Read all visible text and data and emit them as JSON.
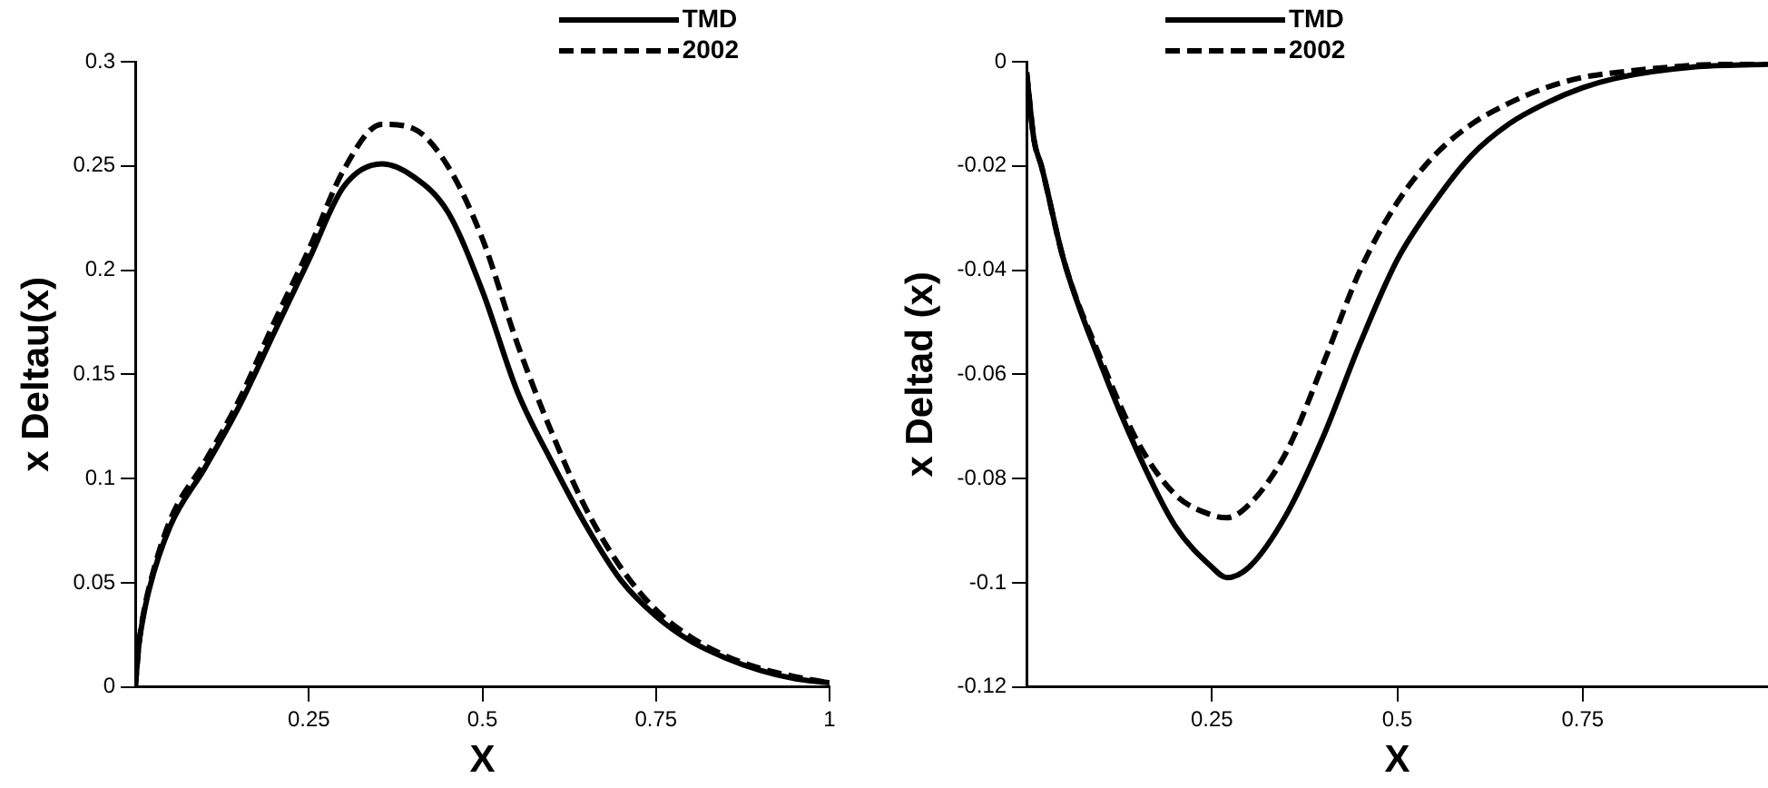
{
  "chart_data": [
    {
      "type": "line",
      "xlabel": "X",
      "ylabel": "x Deltau(x)",
      "xlim": [
        0,
        1
      ],
      "xticks": [
        0.25,
        0.5,
        0.75,
        1
      ],
      "ylim": [
        0,
        0.3
      ],
      "yticks": [
        0,
        0.05,
        0.1,
        0.15,
        0.2,
        0.25,
        0.3
      ],
      "grid": false,
      "legend": "top right",
      "marker": "none",
      "x": [
        0,
        0.005,
        0.01,
        0.02,
        0.05,
        0.1,
        0.15,
        0.2,
        0.25,
        0.3,
        0.355,
        0.4,
        0.45,
        0.5,
        0.55,
        0.6,
        0.65,
        0.7,
        0.75,
        0.8,
        0.85,
        0.9,
        0.95,
        1
      ],
      "series": [
        {
          "name": "TMD",
          "color": "#000000",
          "line_style": "solid",
          "values": [
            0,
            0.02,
            0.031,
            0.047,
            0.077,
            0.105,
            0.135,
            0.17,
            0.205,
            0.24,
            0.251,
            0.245,
            0.228,
            0.19,
            0.142,
            0.108,
            0.077,
            0.051,
            0.034,
            0.022,
            0.014,
            0.008,
            0.004,
            0.002
          ]
        },
        {
          "name": "2002",
          "color": "#000000",
          "line_style": "dashed",
          "values": [
            0,
            0.02,
            0.032,
            0.048,
            0.08,
            0.108,
            0.138,
            0.175,
            0.21,
            0.248,
            0.27,
            0.268,
            0.25,
            0.215,
            0.165,
            0.122,
            0.085,
            0.057,
            0.037,
            0.024,
            0.015,
            0.009,
            0.005,
            0.002
          ]
        }
      ]
    },
    {
      "type": "line",
      "xlabel": "X",
      "ylabel": "x Deltad (x)",
      "xlim": [
        0,
        1
      ],
      "xticks": [
        0.25,
        0.5,
        0.75
      ],
      "ylim": [
        -0.12,
        0
      ],
      "yticks": [
        -0.12,
        -0.1,
        -0.08,
        -0.06,
        -0.04,
        -0.02,
        0
      ],
      "grid": false,
      "legend": "top",
      "marker": "none",
      "x": [
        0,
        0.01,
        0.02,
        0.05,
        0.1,
        0.15,
        0.2,
        0.25,
        0.27,
        0.3,
        0.35,
        0.4,
        0.45,
        0.5,
        0.55,
        0.6,
        0.65,
        0.7,
        0.75,
        0.8,
        0.9,
        1
      ],
      "series": [
        {
          "name": "TMD",
          "color": "#000000",
          "line_style": "solid",
          "values": [
            -0.002,
            -0.015,
            -0.02,
            -0.038,
            -0.058,
            -0.075,
            -0.089,
            -0.097,
            -0.099,
            -0.097,
            -0.087,
            -0.072,
            -0.054,
            -0.038,
            -0.027,
            -0.018,
            -0.012,
            -0.008,
            -0.005,
            -0.003,
            -0.001,
            -0.0005
          ]
        },
        {
          "name": "2002",
          "color": "#000000",
          "line_style": "dashed",
          "values": [
            -0.002,
            -0.015,
            -0.02,
            -0.038,
            -0.057,
            -0.073,
            -0.083,
            -0.087,
            -0.0875,
            -0.085,
            -0.075,
            -0.058,
            -0.04,
            -0.027,
            -0.018,
            -0.012,
            -0.008,
            -0.005,
            -0.003,
            -0.002,
            -0.0007,
            -0.0003
          ]
        }
      ]
    }
  ]
}
